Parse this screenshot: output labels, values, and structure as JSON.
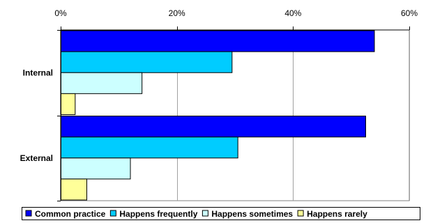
{
  "chart_data": {
    "type": "bar",
    "orientation": "horizontal",
    "categories": [
      "Internal",
      "External"
    ],
    "series": [
      {
        "name": "Common practice",
        "values": [
          54,
          52.5
        ],
        "color": "#0000FF"
      },
      {
        "name": "Happens frequently",
        "values": [
          29.5,
          30.5
        ],
        "color": "#00CCFF"
      },
      {
        "name": "Happens sometimes",
        "values": [
          14,
          12
        ],
        "color": "#CCFFFF"
      },
      {
        "name": "Happens rarely",
        "values": [
          2.5,
          4.5
        ],
        "color": "#FFFF99"
      }
    ],
    "xlim": [
      0,
      60
    ],
    "xticks": [
      0,
      20,
      40,
      60
    ],
    "xtick_labels": [
      "0%",
      "20%",
      "40%",
      "60%"
    ],
    "x_axis_position": "top",
    "grid": true,
    "legend_position": "bottom",
    "title": "",
    "xlabel": "",
    "ylabel": ""
  }
}
